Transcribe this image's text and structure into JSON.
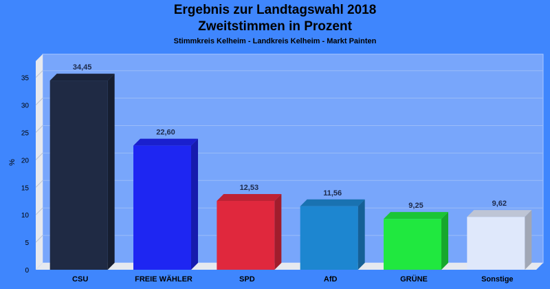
{
  "chart_data": {
    "type": "bar",
    "title": "Ergebnis zur Landtagswahl 2018",
    "title2": "Zweitstimmen in Prozent",
    "subtitle": "Stimmkreis Kelheim - Landkreis Kelheim - Markt Painten",
    "ylabel": "%",
    "ylim": [
      0,
      38
    ],
    "yticks": [
      "0",
      "5",
      "10",
      "15",
      "20",
      "25",
      "30",
      "35"
    ],
    "categories": [
      "CSU",
      "FREIE WÄHLER",
      "SPD",
      "AfD",
      "GRÜNE",
      "Sonstige"
    ],
    "values": [
      34.45,
      22.6,
      12.53,
      11.56,
      9.25,
      9.62
    ],
    "value_labels": [
      "34,45",
      "22,60",
      "12,53",
      "11,56",
      "9,25",
      "9,62"
    ],
    "colors": [
      "#1f2a44",
      "#1e26f2",
      "#e0283d",
      "#1d86d0",
      "#20e83f",
      "#dfe8fb"
    ],
    "grid": true
  }
}
